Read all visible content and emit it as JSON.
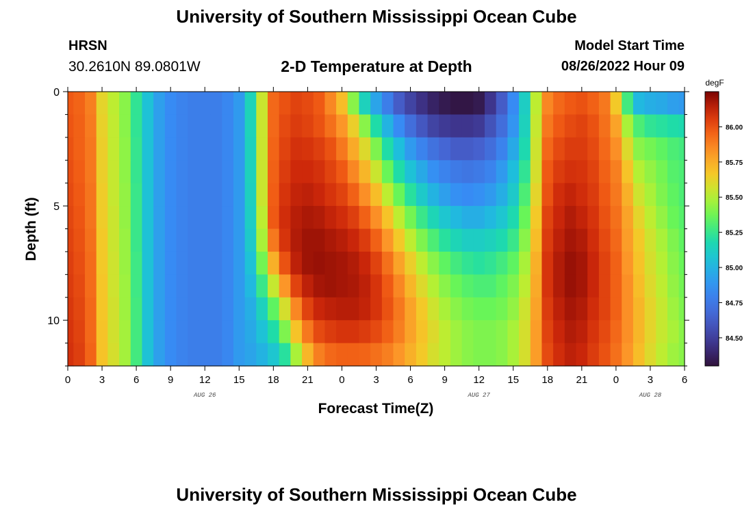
{
  "header": {
    "title": "University of Southern Mississippi Ocean Cube",
    "station": "HRSN",
    "coords": "30.2610N  89.0801W",
    "subtitle": "2-D Temperature at Depth",
    "model_label": "Model Start Time",
    "model_time": "08/26/2022 Hour 09"
  },
  "footer": {
    "title": "University of Southern Mississippi Ocean Cube"
  },
  "chart_data": {
    "type": "heatmap",
    "title": "2-D Temperature at Depth",
    "xlabel": "Forecast Time(Z)",
    "ylabel": "Depth (ft)",
    "x_hours_range": [
      0,
      54
    ],
    "y_range": [
      0,
      12
    ],
    "y_reversed": true,
    "x_ticks": [
      {
        "h": 0,
        "label": "0"
      },
      {
        "h": 3,
        "label": "3"
      },
      {
        "h": 6,
        "label": "6"
      },
      {
        "h": 9,
        "label": "9"
      },
      {
        "h": 12,
        "label": "12"
      },
      {
        "h": 15,
        "label": "15"
      },
      {
        "h": 18,
        "label": "18"
      },
      {
        "h": 21,
        "label": "21"
      },
      {
        "h": 24,
        "label": "0"
      },
      {
        "h": 27,
        "label": "3"
      },
      {
        "h": 30,
        "label": "6"
      },
      {
        "h": 33,
        "label": "9"
      },
      {
        "h": 36,
        "label": "12"
      },
      {
        "h": 39,
        "label": "15"
      },
      {
        "h": 42,
        "label": "18"
      },
      {
        "h": 45,
        "label": "21"
      },
      {
        "h": 48,
        "label": "0"
      },
      {
        "h": 51,
        "label": "3"
      },
      {
        "h": 54,
        "label": "6"
      }
    ],
    "date_labels": [
      {
        "h": 12,
        "label": "AUG 26"
      },
      {
        "h": 36,
        "label": "AUG 27"
      },
      {
        "h": 51,
        "label": "AUG 28"
      }
    ],
    "y_ticks": [
      {
        "v": 0,
        "label": "0"
      },
      {
        "v": 5,
        "label": "5"
      },
      {
        "v": 10,
        "label": "10"
      }
    ],
    "colorbar": {
      "unit": "degF",
      "range": [
        84.3,
        86.25
      ],
      "ticks": [
        "84.50",
        "84.75",
        "85.00",
        "85.25",
        "85.50",
        "85.75",
        "86.00"
      ]
    },
    "depths_ft": [
      0.5,
      1.5,
      2.5,
      3.5,
      4.5,
      5.5,
      6.5,
      7.5,
      8.5,
      9.5,
      10.5,
      11.5
    ],
    "hours": [
      0,
      1,
      2,
      3,
      4,
      5,
      6,
      7,
      8,
      9,
      10,
      11,
      12,
      13,
      14,
      15,
      16,
      17,
      18,
      19,
      20,
      21,
      22,
      23,
      24,
      25,
      26,
      27,
      28,
      29,
      30,
      31,
      32,
      33,
      34,
      35,
      36,
      37,
      38,
      39,
      40,
      41,
      42,
      43,
      44,
      45,
      46,
      47,
      48,
      49,
      50,
      51,
      52,
      53,
      54
    ],
    "temperature_degF": [
      [
        85.98,
        85.95,
        85.88,
        85.62,
        85.52,
        85.42,
        85.24,
        85.06,
        84.92,
        84.84,
        84.8,
        84.78,
        84.78,
        84.78,
        84.82,
        84.9,
        85.15,
        85.55,
        85.94,
        86.0,
        86.04,
        86.02,
        85.98,
        85.86,
        85.7,
        85.42,
        85.14,
        84.94,
        84.78,
        84.62,
        84.52,
        84.44,
        84.38,
        84.34,
        84.32,
        84.32,
        84.34,
        84.46,
        84.62,
        84.84,
        85.12,
        85.52,
        85.86,
        85.94,
        85.98,
        86.0,
        85.96,
        85.9,
        85.66,
        85.28,
        85.02,
        84.98,
        84.96,
        84.92,
        84.9
      ],
      [
        85.99,
        85.96,
        85.89,
        85.63,
        85.53,
        85.42,
        85.24,
        85.06,
        84.92,
        84.84,
        84.8,
        84.78,
        84.78,
        84.78,
        84.82,
        84.9,
        85.15,
        85.55,
        85.94,
        86.02,
        86.06,
        86.04,
        86.0,
        85.92,
        85.82,
        85.64,
        85.42,
        85.2,
        85.0,
        84.84,
        84.7,
        84.6,
        84.52,
        84.48,
        84.46,
        84.46,
        84.48,
        84.58,
        84.7,
        84.88,
        85.14,
        85.54,
        85.9,
        85.98,
        86.02,
        86.04,
        86.0,
        85.92,
        85.78,
        85.48,
        85.3,
        85.24,
        85.22,
        85.2,
        85.18
      ],
      [
        86.0,
        85.96,
        85.9,
        85.64,
        85.53,
        85.43,
        85.25,
        85.06,
        84.92,
        84.84,
        84.8,
        84.78,
        84.78,
        84.78,
        84.82,
        84.9,
        85.14,
        85.55,
        85.95,
        86.04,
        86.09,
        86.08,
        86.05,
        86.0,
        85.9,
        85.76,
        85.6,
        85.4,
        85.2,
        85.04,
        84.9,
        84.8,
        84.72,
        84.66,
        84.62,
        84.62,
        84.64,
        84.7,
        84.8,
        84.96,
        85.18,
        85.56,
        85.94,
        86.02,
        86.06,
        86.06,
        86.02,
        85.94,
        85.84,
        85.6,
        85.42,
        85.38,
        85.34,
        85.3,
        85.28
      ],
      [
        86.01,
        85.97,
        85.9,
        85.64,
        85.54,
        85.43,
        85.25,
        85.06,
        84.92,
        84.84,
        84.8,
        84.78,
        84.78,
        84.78,
        84.82,
        84.9,
        85.14,
        85.55,
        85.96,
        86.06,
        86.11,
        86.11,
        86.09,
        86.04,
        85.98,
        85.86,
        85.72,
        85.55,
        85.36,
        85.2,
        85.06,
        84.96,
        84.86,
        84.8,
        84.76,
        84.74,
        84.76,
        84.8,
        84.9,
        85.04,
        85.24,
        85.58,
        85.98,
        86.06,
        86.09,
        86.08,
        86.04,
        85.96,
        85.88,
        85.68,
        85.5,
        85.44,
        85.38,
        85.32,
        85.3
      ],
      [
        86.02,
        85.98,
        85.91,
        85.65,
        85.54,
        85.44,
        85.26,
        85.06,
        84.92,
        84.84,
        84.8,
        84.78,
        84.78,
        84.78,
        84.82,
        84.9,
        85.13,
        85.55,
        85.97,
        86.08,
        86.13,
        86.14,
        86.12,
        86.08,
        86.04,
        85.96,
        85.84,
        85.7,
        85.52,
        85.36,
        85.22,
        85.1,
        85.0,
        84.92,
        84.86,
        84.84,
        84.86,
        84.9,
        84.98,
        85.1,
        85.3,
        85.62,
        86.0,
        86.1,
        86.13,
        86.1,
        86.06,
        85.98,
        85.9,
        85.74,
        85.56,
        85.48,
        85.4,
        85.34,
        85.3
      ],
      [
        86.03,
        85.99,
        85.91,
        85.65,
        85.55,
        85.44,
        85.26,
        85.06,
        84.92,
        84.84,
        84.8,
        84.78,
        84.78,
        84.78,
        84.82,
        84.9,
        85.12,
        85.52,
        85.98,
        86.1,
        86.15,
        86.17,
        86.16,
        86.13,
        86.1,
        86.05,
        85.96,
        85.84,
        85.68,
        85.52,
        85.38,
        85.26,
        85.16,
        85.08,
        85.02,
        84.98,
        84.98,
        85.02,
        85.08,
        85.18,
        85.36,
        85.66,
        86.04,
        86.12,
        86.16,
        86.13,
        86.08,
        86.0,
        85.92,
        85.78,
        85.62,
        85.52,
        85.44,
        85.36,
        85.32
      ],
      [
        86.04,
        86.0,
        85.92,
        85.66,
        85.55,
        85.45,
        85.26,
        85.06,
        84.92,
        84.84,
        84.8,
        84.78,
        84.78,
        84.78,
        84.82,
        84.9,
        85.1,
        85.48,
        85.9,
        86.08,
        86.16,
        86.19,
        86.19,
        86.17,
        86.15,
        86.12,
        86.06,
        85.96,
        85.82,
        85.66,
        85.52,
        85.4,
        85.3,
        85.22,
        85.16,
        85.12,
        85.12,
        85.14,
        85.18,
        85.26,
        85.42,
        85.7,
        86.06,
        86.14,
        86.18,
        86.16,
        86.1,
        86.02,
        85.94,
        85.8,
        85.66,
        85.56,
        85.48,
        85.4,
        85.34
      ],
      [
        86.05,
        86.01,
        85.93,
        85.66,
        85.56,
        85.45,
        85.27,
        85.06,
        84.92,
        84.84,
        84.8,
        84.78,
        84.78,
        84.78,
        84.82,
        84.9,
        85.06,
        85.38,
        85.74,
        86.0,
        86.14,
        86.19,
        86.2,
        86.19,
        86.18,
        86.16,
        86.12,
        86.04,
        85.92,
        85.78,
        85.64,
        85.52,
        85.42,
        85.34,
        85.28,
        85.24,
        85.22,
        85.24,
        85.28,
        85.34,
        85.48,
        85.74,
        86.08,
        86.16,
        86.2,
        86.18,
        86.12,
        86.04,
        85.96,
        85.82,
        85.68,
        85.58,
        85.5,
        85.42,
        85.36
      ],
      [
        86.06,
        86.02,
        85.93,
        85.67,
        85.56,
        85.46,
        85.27,
        85.06,
        84.92,
        84.84,
        84.8,
        84.78,
        84.78,
        84.78,
        84.82,
        84.9,
        85.02,
        85.26,
        85.54,
        85.82,
        86.04,
        86.14,
        86.18,
        86.19,
        86.18,
        86.17,
        86.14,
        86.08,
        85.98,
        85.86,
        85.72,
        85.6,
        85.5,
        85.42,
        85.36,
        85.32,
        85.3,
        85.3,
        85.34,
        85.4,
        85.52,
        85.76,
        86.08,
        86.16,
        86.2,
        86.18,
        86.12,
        86.04,
        85.96,
        85.84,
        85.7,
        85.6,
        85.52,
        85.44,
        85.38
      ],
      [
        86.07,
        86.03,
        85.94,
        85.67,
        85.57,
        85.46,
        85.28,
        85.06,
        84.92,
        84.84,
        84.8,
        84.78,
        84.78,
        84.78,
        84.82,
        84.9,
        84.98,
        85.14,
        85.34,
        85.58,
        85.86,
        86.04,
        86.12,
        86.14,
        86.15,
        86.15,
        86.13,
        86.08,
        86.0,
        85.9,
        85.78,
        85.66,
        85.56,
        85.48,
        85.42,
        85.38,
        85.36,
        85.36,
        85.38,
        85.44,
        85.56,
        85.78,
        86.06,
        86.14,
        86.18,
        86.16,
        86.1,
        86.04,
        85.96,
        85.84,
        85.72,
        85.62,
        85.54,
        85.46,
        85.4
      ],
      [
        86.08,
        86.04,
        85.94,
        85.68,
        85.57,
        85.47,
        85.28,
        85.06,
        84.92,
        84.84,
        84.8,
        84.78,
        84.78,
        84.78,
        84.82,
        84.9,
        84.96,
        85.06,
        85.2,
        85.4,
        85.68,
        85.9,
        86.02,
        86.06,
        86.08,
        86.08,
        86.06,
        86.02,
        85.96,
        85.88,
        85.78,
        85.68,
        85.6,
        85.52,
        85.46,
        85.42,
        85.4,
        85.4,
        85.42,
        85.48,
        85.58,
        85.8,
        86.04,
        86.12,
        86.16,
        86.14,
        86.08,
        86.02,
        85.94,
        85.84,
        85.72,
        85.62,
        85.54,
        85.48,
        85.42
      ],
      [
        86.09,
        86.05,
        85.95,
        85.68,
        85.58,
        85.47,
        85.28,
        85.06,
        84.92,
        84.84,
        84.8,
        84.78,
        84.78,
        84.78,
        84.82,
        84.9,
        84.94,
        85.0,
        85.08,
        85.22,
        85.48,
        85.72,
        85.88,
        85.94,
        85.96,
        85.96,
        85.95,
        85.92,
        85.88,
        85.82,
        85.74,
        85.66,
        85.58,
        85.52,
        85.46,
        85.42,
        85.4,
        85.4,
        85.42,
        85.48,
        85.58,
        85.8,
        86.02,
        86.1,
        86.14,
        86.12,
        86.06,
        86.0,
        85.92,
        85.82,
        85.7,
        85.6,
        85.52,
        85.46,
        85.42
      ]
    ]
  }
}
